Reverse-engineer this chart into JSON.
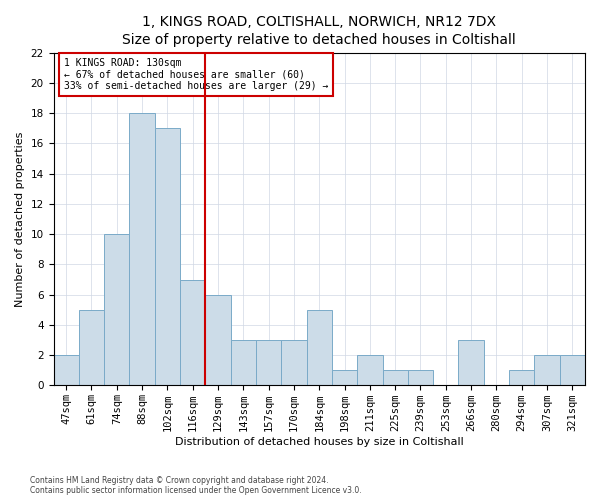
{
  "title": "1, KINGS ROAD, COLTISHALL, NORWICH, NR12 7DX",
  "subtitle": "Size of property relative to detached houses in Coltishall",
  "xlabel": "Distribution of detached houses by size in Coltishall",
  "ylabel": "Number of detached properties",
  "categories": [
    "47sqm",
    "61sqm",
    "74sqm",
    "88sqm",
    "102sqm",
    "116sqm",
    "129sqm",
    "143sqm",
    "157sqm",
    "170sqm",
    "184sqm",
    "198sqm",
    "211sqm",
    "225sqm",
    "239sqm",
    "253sqm",
    "266sqm",
    "280sqm",
    "294sqm",
    "307sqm",
    "321sqm"
  ],
  "values": [
    2,
    5,
    10,
    18,
    17,
    7,
    6,
    3,
    3,
    3,
    5,
    1,
    2,
    1,
    1,
    0,
    3,
    0,
    1,
    2,
    2
  ],
  "bar_color": "#ccdce8",
  "bar_edgecolor": "#7aaac8",
  "ref_bar_index": 6,
  "annotation_line1": "1 KINGS ROAD: 130sqm",
  "annotation_line2": "← 67% of detached houses are smaller (60)",
  "annotation_line3": "33% of semi-detached houses are larger (29) →",
  "annotation_box_edgecolor": "#cc0000",
  "ref_line_color": "#cc0000",
  "ylim": [
    0,
    22
  ],
  "yticks": [
    0,
    2,
    4,
    6,
    8,
    10,
    12,
    14,
    16,
    18,
    20,
    22
  ],
  "footnote1": "Contains HM Land Registry data © Crown copyright and database right 2024.",
  "footnote2": "Contains public sector information licensed under the Open Government Licence v3.0.",
  "bg_color": "#ffffff",
  "grid_color": "#d0d8e4",
  "title_fontsize": 10,
  "subtitle_fontsize": 9,
  "ylabel_fontsize": 8,
  "xlabel_fontsize": 8,
  "tick_fontsize": 7.5,
  "annot_fontsize": 7
}
